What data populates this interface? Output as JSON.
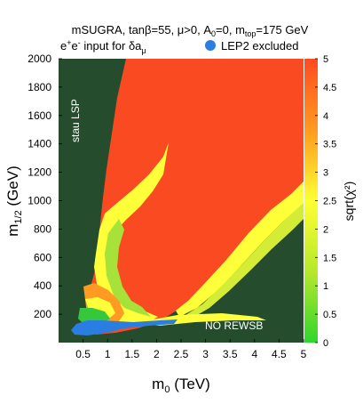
{
  "chart_data": {
    "type": "heatmap",
    "title_line1": {
      "a": "mSUGRA, tan",
      "beta": "β",
      "b": "=55, ",
      "mu": "μ",
      "c": ">0, A",
      "a0sub": "0",
      "d": "=0, m",
      "msub": "top",
      "e": "=175 GeV"
    },
    "title_line2": {
      "pre": "e",
      "sup1": "+",
      "mid": "e",
      "sup2": "-",
      "post": " input for ",
      "delta": "δa",
      "sub": "μ"
    },
    "legend": {
      "label": "LEP2 excluded",
      "color": "#2a7de1"
    },
    "xlabel": {
      "main": "m",
      "sub": "0",
      "unit": " (TeV)"
    },
    "ylabel": {
      "main": "m",
      "sub": "1/2",
      "unit": " (GeV)"
    },
    "xlim": [
      0,
      5
    ],
    "ylim": [
      0,
      2000
    ],
    "x_ticks": [
      {
        "v": 0.5,
        "label": "0.5"
      },
      {
        "v": 1,
        "label": "1"
      },
      {
        "v": 1.5,
        "label": "1.5"
      },
      {
        "v": 2,
        "label": "2"
      },
      {
        "v": 2.5,
        "label": "2.5"
      },
      {
        "v": 3,
        "label": "3"
      },
      {
        "v": 3.5,
        "label": "3.5"
      },
      {
        "v": 4,
        "label": "4"
      },
      {
        "v": 4.5,
        "label": "4.5"
      },
      {
        "v": 5,
        "label": "5"
      }
    ],
    "y_ticks": [
      {
        "v": 200,
        "label": "200"
      },
      {
        "v": 400,
        "label": "400"
      },
      {
        "v": 600,
        "label": "600"
      },
      {
        "v": 800,
        "label": "800"
      },
      {
        "v": 1000,
        "label": "1000"
      },
      {
        "v": 1200,
        "label": "1200"
      },
      {
        "v": 1400,
        "label": "1400"
      },
      {
        "v": 1600,
        "label": "1600"
      },
      {
        "v": 1800,
        "label": "1800"
      },
      {
        "v": 2000,
        "label": "2000"
      }
    ],
    "colorbar": {
      "label": "sqrt(χ²)",
      "range": [
        0,
        5
      ],
      "ticks": [
        {
          "v": 0,
          "label": "0"
        },
        {
          "v": 0.5,
          "label": "0.5"
        },
        {
          "v": 1,
          "label": "1"
        },
        {
          "v": 1.5,
          "label": "1.5"
        },
        {
          "v": 2,
          "label": "2"
        },
        {
          "v": 2.5,
          "label": "2.5"
        },
        {
          "v": 3,
          "label": "3"
        },
        {
          "v": 3.5,
          "label": "3.5"
        },
        {
          "v": 4,
          "label": "4"
        },
        {
          "v": 4.5,
          "label": "4.5"
        },
        {
          "v": 5,
          "label": "5"
        }
      ],
      "colors": [
        "#2ed62e",
        "#b6e82c",
        "#ffff33",
        "#ff9a1f",
        "#ff4a22"
      ]
    },
    "region_colors": {
      "excluded": "#254d2d",
      "chi_high": "#fa4a22",
      "chi_mid": "#ffff3a",
      "chi_low": "#a7e23a",
      "chi_min": "#36c83c",
      "chi_orange": "#ff9a22"
    },
    "regions": [
      {
        "name": "stau-lsp-excluded",
        "label": "stau LSP"
      },
      {
        "name": "no-rewsb-excluded",
        "label": "NO REWSB"
      }
    ]
  }
}
